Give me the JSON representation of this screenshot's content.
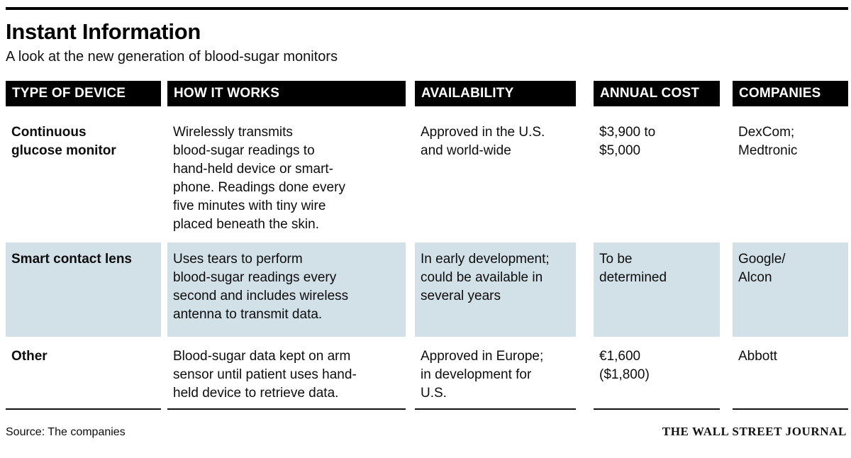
{
  "header": {
    "title": "Instant Information",
    "subtitle": "A look at the new generation of blood-sugar monitors"
  },
  "table": {
    "columns": [
      {
        "label": "TYPE OF DEVICE"
      },
      {
        "label": "HOW IT WORKS"
      },
      {
        "label": "AVAILABILITY"
      },
      {
        "label": "ANNUAL COST"
      },
      {
        "label": "COMPANIES"
      }
    ],
    "rows": [
      {
        "type": "Continuous\nglucose monitor",
        "how": "Wirelessly transmits\nblood-sugar readings to\nhand-held device or smart-\nphone. Readings done every\nfive minutes with tiny wire\nplaced beneath the skin.",
        "availability": "Approved in the U.S.\nand world-wide",
        "cost": "$3,900 to\n$5,000",
        "companies": "DexCom;\nMedtronic",
        "highlighted": false
      },
      {
        "type": "Smart contact lens",
        "how": "Uses tears to perform\nblood-sugar readings every\nsecond and includes wireless\nantenna to transmit data.",
        "availability": "In early development;\ncould be available in\nseveral years",
        "cost": "To be\ndetermined",
        "companies": "Google/\nAlcon",
        "highlighted": true
      },
      {
        "type": "Other",
        "how": "Blood-sugar data kept on arm\nsensor until patient uses hand-\nheld device to retrieve data.",
        "availability": "Approved in Europe;\nin development for\nU.S.",
        "cost": "€1,600\n($1,800)",
        "companies": "Abbott",
        "highlighted": false
      }
    ]
  },
  "footer": {
    "source": "Source: The companies",
    "credit": "THE WALL STREET JOURNAL"
  },
  "colors": {
    "header_bar_bg": "#000000",
    "header_bar_text": "#ffffff",
    "highlight_row_bg": "#d2e0e8",
    "rule": "#000000",
    "text": "#0d0d0d"
  }
}
